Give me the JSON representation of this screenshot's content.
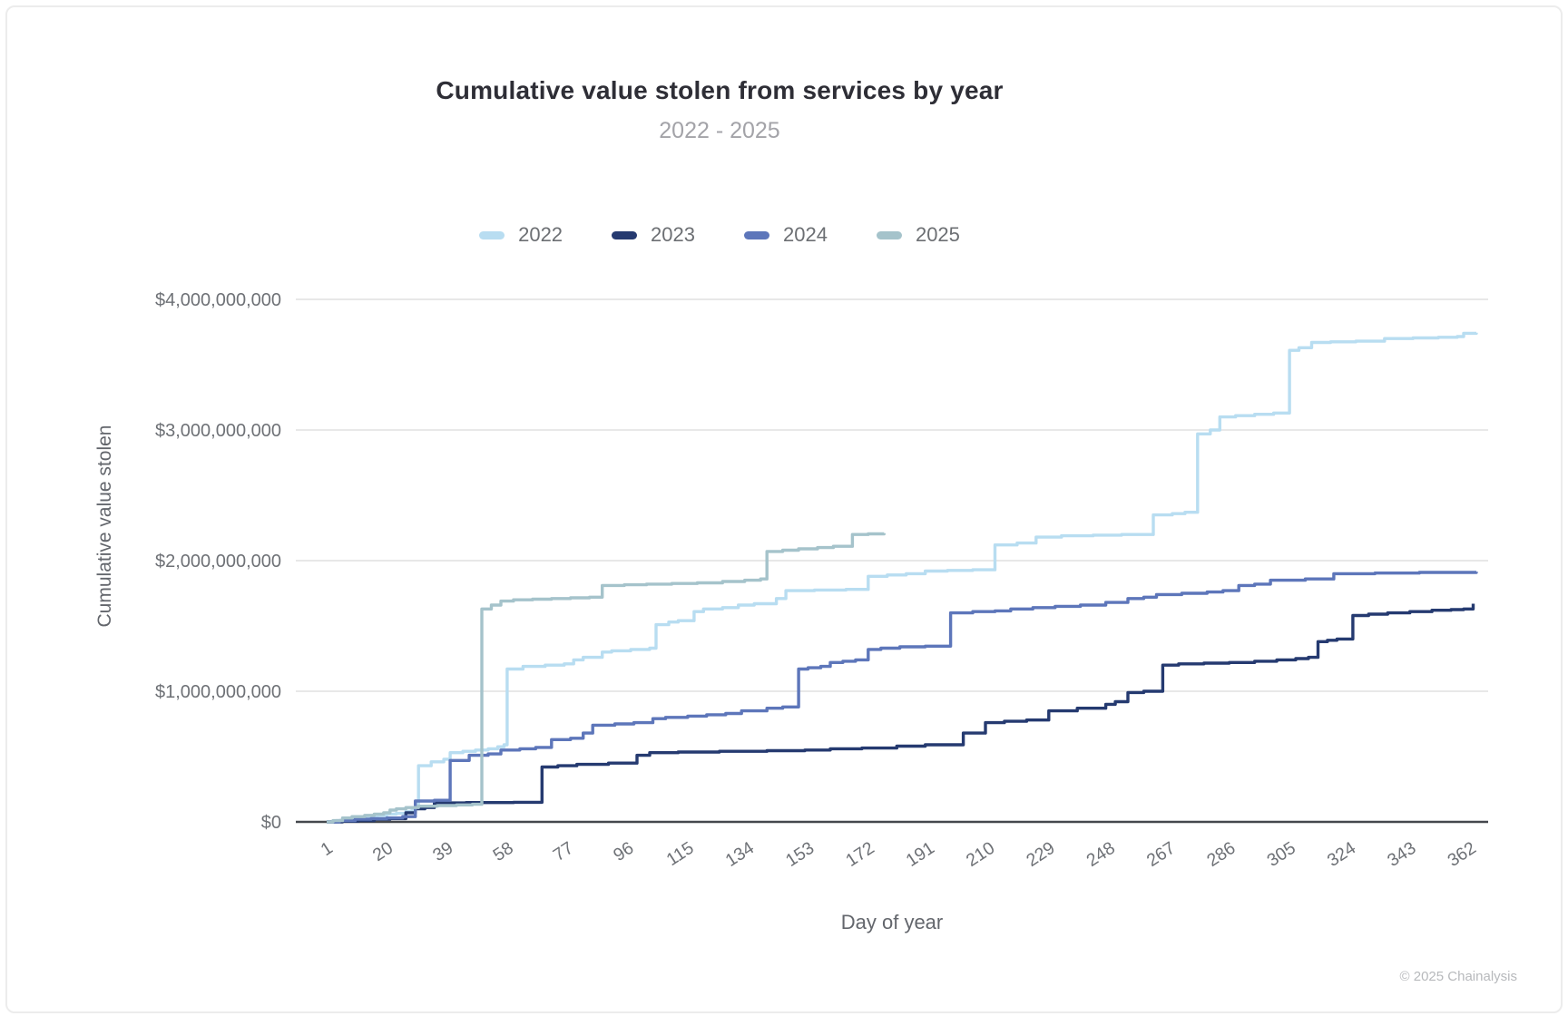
{
  "header": {
    "title": "Cumulative value stolen from services by year",
    "subtitle": "2022 - 2025"
  },
  "legend": [
    {
      "label": "2022",
      "color": "#b8ddf1"
    },
    {
      "label": "2023",
      "color": "#253a70"
    },
    {
      "label": "2024",
      "color": "#5d76ba"
    },
    {
      "label": "2025",
      "color": "#a5c3cb"
    }
  ],
  "axes": {
    "y_title": "Cumulative value stolen",
    "x_title": "Day of year",
    "y_ticks": [
      {
        "label": "$0",
        "value": 0
      },
      {
        "label": "$1,000,000,000",
        "value": 1
      },
      {
        "label": "$2,000,000,000",
        "value": 2
      },
      {
        "label": "$3,000,000,000",
        "value": 3
      },
      {
        "label": "$4,000,000,000",
        "value": 4
      }
    ],
    "x_ticks": [
      1,
      20,
      39,
      58,
      77,
      96,
      115,
      134,
      153,
      172,
      191,
      210,
      229,
      248,
      267,
      286,
      305,
      324,
      343,
      362
    ]
  },
  "footer": {
    "credit": "© 2025 Chainalysis"
  },
  "colors": {
    "grid": "#d9d9d9",
    "zero_axis": "#45484d",
    "tick_text": "#6e7176"
  },
  "chart_data": {
    "type": "line",
    "interpolation": "step-after",
    "title": "Cumulative value stolen from services by year",
    "subtitle": "2022 - 2025",
    "xlabel": "Day of year",
    "ylabel": "Cumulative value stolen",
    "y_unit": "USD billions",
    "x_unit": "day of year",
    "xlim": [
      1,
      365
    ],
    "ylim": [
      0,
      4
    ],
    "grid": "horizontal only",
    "legend_position": "top center",
    "series": [
      {
        "name": "2022",
        "color": "#b8ddf1",
        "points": [
          [
            1,
            0
          ],
          [
            4,
            0.01
          ],
          [
            8,
            0.02
          ],
          [
            13,
            0.035
          ],
          [
            17,
            0.05
          ],
          [
            20,
            0.06
          ],
          [
            23,
            0.065
          ],
          [
            26,
            0.08
          ],
          [
            28,
            0.1
          ],
          [
            30,
            0.43
          ],
          [
            34,
            0.46
          ],
          [
            38,
            0.48
          ],
          [
            40,
            0.53
          ],
          [
            44,
            0.54
          ],
          [
            48,
            0.55
          ],
          [
            52,
            0.56
          ],
          [
            55,
            0.575
          ],
          [
            57,
            0.59
          ],
          [
            58,
            1.17
          ],
          [
            63,
            1.19
          ],
          [
            70,
            1.2
          ],
          [
            76,
            1.21
          ],
          [
            79,
            1.24
          ],
          [
            82,
            1.26
          ],
          [
            88,
            1.3
          ],
          [
            91,
            1.31
          ],
          [
            97,
            1.32
          ],
          [
            103,
            1.33
          ],
          [
            105,
            1.51
          ],
          [
            109,
            1.53
          ],
          [
            112,
            1.54
          ],
          [
            117,
            1.61
          ],
          [
            120,
            1.63
          ],
          [
            126,
            1.64
          ],
          [
            131,
            1.66
          ],
          [
            136,
            1.67
          ],
          [
            143,
            1.71
          ],
          [
            146,
            1.77
          ],
          [
            155,
            1.775
          ],
          [
            165,
            1.78
          ],
          [
            172,
            1.88
          ],
          [
            178,
            1.89
          ],
          [
            184,
            1.9
          ],
          [
            190,
            1.92
          ],
          [
            197,
            1.925
          ],
          [
            205,
            1.93
          ],
          [
            212,
            2.12
          ],
          [
            219,
            2.135
          ],
          [
            225,
            2.18
          ],
          [
            233,
            2.19
          ],
          [
            243,
            2.195
          ],
          [
            252,
            2.2
          ],
          [
            262,
            2.35
          ],
          [
            268,
            2.36
          ],
          [
            272,
            2.37
          ],
          [
            276,
            2.97
          ],
          [
            280,
            3.0
          ],
          [
            283,
            3.1
          ],
          [
            288,
            3.11
          ],
          [
            294,
            3.12
          ],
          [
            300,
            3.13
          ],
          [
            305,
            3.61
          ],
          [
            308,
            3.63
          ],
          [
            312,
            3.67
          ],
          [
            318,
            3.675
          ],
          [
            326,
            3.68
          ],
          [
            335,
            3.7
          ],
          [
            344,
            3.705
          ],
          [
            352,
            3.71
          ],
          [
            358,
            3.715
          ],
          [
            360,
            3.74
          ],
          [
            364,
            3.745
          ]
        ]
      },
      {
        "name": "2023",
        "color": "#253a70",
        "points": [
          [
            1,
            0
          ],
          [
            6,
            0.005
          ],
          [
            11,
            0.01
          ],
          [
            16,
            0.02
          ],
          [
            21,
            0.025
          ],
          [
            26,
            0.07
          ],
          [
            29,
            0.1
          ],
          [
            32,
            0.11
          ],
          [
            35,
            0.145
          ],
          [
            45,
            0.148
          ],
          [
            60,
            0.15
          ],
          [
            69,
            0.42
          ],
          [
            74,
            0.43
          ],
          [
            80,
            0.44
          ],
          [
            90,
            0.45
          ],
          [
            99,
            0.51
          ],
          [
            103,
            0.53
          ],
          [
            112,
            0.535
          ],
          [
            125,
            0.54
          ],
          [
            140,
            0.545
          ],
          [
            152,
            0.55
          ],
          [
            160,
            0.56
          ],
          [
            170,
            0.565
          ],
          [
            181,
            0.58
          ],
          [
            190,
            0.59
          ],
          [
            202,
            0.68
          ],
          [
            209,
            0.76
          ],
          [
            215,
            0.77
          ],
          [
            222,
            0.78
          ],
          [
            229,
            0.85
          ],
          [
            238,
            0.87
          ],
          [
            247,
            0.9
          ],
          [
            250,
            0.92
          ],
          [
            254,
            0.99
          ],
          [
            259,
            1.0
          ],
          [
            265,
            1.2
          ],
          [
            270,
            1.21
          ],
          [
            278,
            1.215
          ],
          [
            286,
            1.22
          ],
          [
            294,
            1.23
          ],
          [
            301,
            1.24
          ],
          [
            307,
            1.25
          ],
          [
            311,
            1.26
          ],
          [
            314,
            1.38
          ],
          [
            317,
            1.39
          ],
          [
            320,
            1.4
          ],
          [
            325,
            1.58
          ],
          [
            330,
            1.59
          ],
          [
            336,
            1.6
          ],
          [
            343,
            1.61
          ],
          [
            350,
            1.62
          ],
          [
            356,
            1.625
          ],
          [
            360,
            1.63
          ],
          [
            363,
            1.67
          ]
        ]
      },
      {
        "name": "2024",
        "color": "#5d76ba",
        "points": [
          [
            1,
            0
          ],
          [
            5,
            0.01
          ],
          [
            10,
            0.02
          ],
          [
            15,
            0.025
          ],
          [
            20,
            0.03
          ],
          [
            25,
            0.04
          ],
          [
            29,
            0.16
          ],
          [
            35,
            0.165
          ],
          [
            40,
            0.47
          ],
          [
            46,
            0.51
          ],
          [
            52,
            0.52
          ],
          [
            56,
            0.55
          ],
          [
            62,
            0.56
          ],
          [
            67,
            0.57
          ],
          [
            72,
            0.63
          ],
          [
            78,
            0.64
          ],
          [
            82,
            0.68
          ],
          [
            85,
            0.74
          ],
          [
            92,
            0.75
          ],
          [
            98,
            0.76
          ],
          [
            104,
            0.79
          ],
          [
            108,
            0.8
          ],
          [
            115,
            0.81
          ],
          [
            121,
            0.82
          ],
          [
            127,
            0.83
          ],
          [
            132,
            0.85
          ],
          [
            140,
            0.87
          ],
          [
            145,
            0.88
          ],
          [
            150,
            1.17
          ],
          [
            153,
            1.18
          ],
          [
            157,
            1.19
          ],
          [
            160,
            1.22
          ],
          [
            164,
            1.23
          ],
          [
            168,
            1.24
          ],
          [
            172,
            1.32
          ],
          [
            176,
            1.33
          ],
          [
            182,
            1.34
          ],
          [
            190,
            1.345
          ],
          [
            198,
            1.6
          ],
          [
            205,
            1.61
          ],
          [
            212,
            1.615
          ],
          [
            217,
            1.63
          ],
          [
            224,
            1.64
          ],
          [
            231,
            1.65
          ],
          [
            239,
            1.66
          ],
          [
            247,
            1.68
          ],
          [
            254,
            1.71
          ],
          [
            259,
            1.72
          ],
          [
            263,
            1.74
          ],
          [
            271,
            1.75
          ],
          [
            279,
            1.76
          ],
          [
            284,
            1.77
          ],
          [
            289,
            1.81
          ],
          [
            294,
            1.82
          ],
          [
            299,
            1.85
          ],
          [
            310,
            1.86
          ],
          [
            319,
            1.9
          ],
          [
            332,
            1.905
          ],
          [
            346,
            1.91
          ],
          [
            364,
            1.915
          ]
        ]
      },
      {
        "name": "2025",
        "color": "#a5c3cb",
        "points": [
          [
            1,
            0
          ],
          [
            3,
            0.01
          ],
          [
            6,
            0.03
          ],
          [
            9,
            0.04
          ],
          [
            13,
            0.05
          ],
          [
            16,
            0.06
          ],
          [
            19,
            0.07
          ],
          [
            21,
            0.09
          ],
          [
            23,
            0.1
          ],
          [
            26,
            0.11
          ],
          [
            30,
            0.12
          ],
          [
            36,
            0.125
          ],
          [
            42,
            0.13
          ],
          [
            47,
            0.135
          ],
          [
            50,
            1.63
          ],
          [
            53,
            1.66
          ],
          [
            56,
            1.69
          ],
          [
            60,
            1.7
          ],
          [
            66,
            1.705
          ],
          [
            72,
            1.71
          ],
          [
            78,
            1.715
          ],
          [
            84,
            1.72
          ],
          [
            88,
            1.81
          ],
          [
            95,
            1.815
          ],
          [
            102,
            1.82
          ],
          [
            110,
            1.825
          ],
          [
            118,
            1.83
          ],
          [
            126,
            1.84
          ],
          [
            133,
            1.85
          ],
          [
            138,
            1.86
          ],
          [
            140,
            2.07
          ],
          [
            145,
            2.08
          ],
          [
            150,
            2.09
          ],
          [
            156,
            2.1
          ],
          [
            161,
            2.11
          ],
          [
            167,
            2.2
          ],
          [
            172,
            2.205
          ],
          [
            177,
            2.21
          ]
        ]
      }
    ]
  }
}
